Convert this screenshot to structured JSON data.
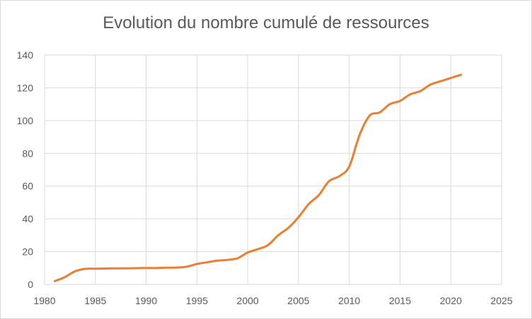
{
  "chart_data": {
    "type": "line",
    "title": "Evolution du nombre cumulé de ressources",
    "xlabel": "",
    "ylabel": "",
    "xlim": [
      1980,
      2025
    ],
    "ylim": [
      0,
      140
    ],
    "x_ticks": [
      1980,
      1985,
      1990,
      1995,
      2000,
      2005,
      2010,
      2015,
      2020,
      2025
    ],
    "y_ticks": [
      0,
      20,
      40,
      60,
      80,
      100,
      120,
      140
    ],
    "grid": true,
    "legend": "none",
    "series": [
      {
        "color": "#ED7D31",
        "x": [
          1981,
          1982,
          1983,
          1984,
          1985,
          1986,
          1987,
          1988,
          1989,
          1990,
          1991,
          1992,
          1993,
          1994,
          1995,
          1996,
          1997,
          1998,
          1999,
          2000,
          2001,
          2002,
          2003,
          2004,
          2005,
          2006,
          2007,
          2008,
          2009,
          2010,
          2011,
          2012,
          2013,
          2014,
          2015,
          2016,
          2017,
          2018,
          2019,
          2020,
          2021
        ],
        "y": [
          2,
          4.5,
          8,
          9.5,
          9.6,
          9.7,
          9.8,
          9.8,
          9.9,
          10,
          10,
          10.2,
          10.3,
          10.8,
          12.5,
          13.5,
          14.5,
          15,
          16,
          19.5,
          21.5,
          24,
          30,
          34.5,
          41,
          49,
          54.5,
          63,
          66,
          72,
          91,
          103,
          105,
          110,
          112,
          116,
          118,
          122,
          124,
          126,
          128
        ]
      }
    ]
  }
}
